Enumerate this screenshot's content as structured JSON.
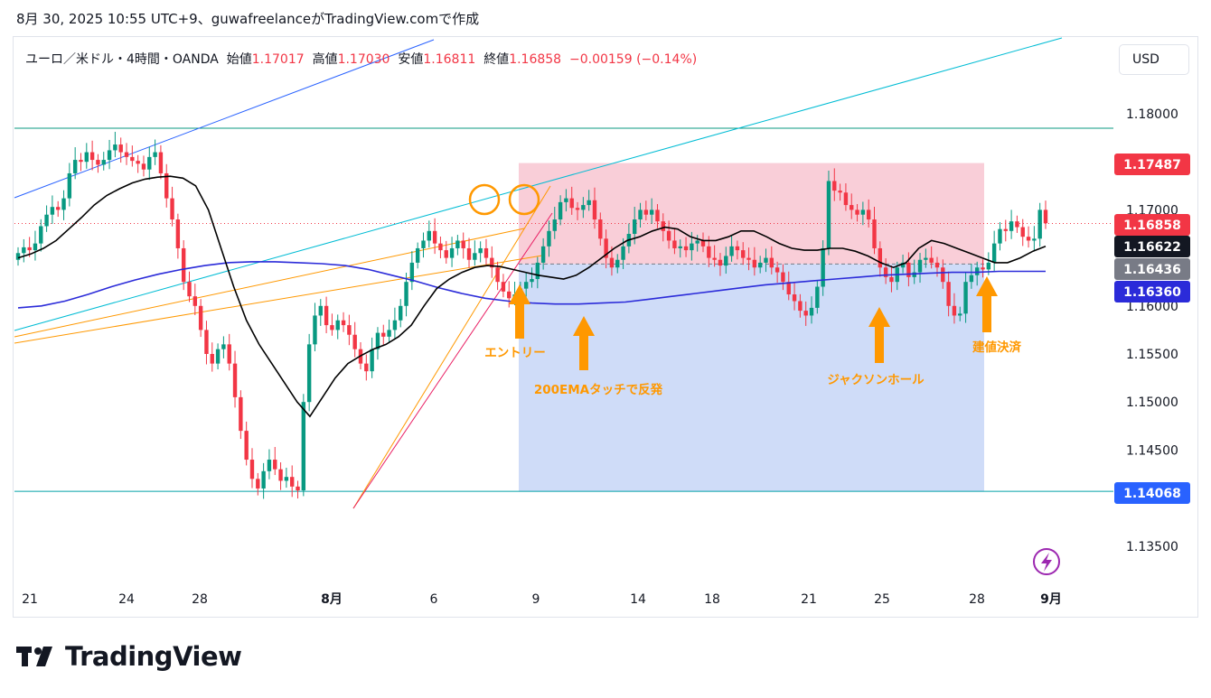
{
  "header": {
    "text": "8月 30, 2025 10:55 UTC+9、guwafreelanceがTradingView.comで作成"
  },
  "ohlc": {
    "symbol": "ユーロ／米ドル・4時間・OANDA",
    "open_label": "始値",
    "open": "1.17017",
    "high_label": "高値",
    "high": "1.17030",
    "low_label": "安値",
    "low": "1.16811",
    "close_label": "終値",
    "close": "1.16858",
    "change": "−0.00159 (−0.14%)"
  },
  "currency_button": "USD",
  "logo_text": "TradingView",
  "colors": {
    "up": "#089981",
    "down": "#f23645",
    "ema_short": "#000000",
    "ema_200": "#2b2bd9",
    "annotation": "#ff9800",
    "sl_zone": "#f8c6d1",
    "tp_zone": "#c7d6f7"
  },
  "chart_data": {
    "type": "candlestick",
    "y_ticks": [
      "1.18000",
      "1.17000",
      "1.16000",
      "1.15500",
      "1.15000",
      "1.14500",
      "1.13500"
    ],
    "ylim": [
      1.131,
      1.1895
    ],
    "x_ticks": [
      "21",
      "24",
      "28",
      "8月",
      "6",
      "9",
      "14",
      "18",
      "21",
      "25",
      "28",
      "9月"
    ],
    "price_labels": [
      {
        "value": "1.17487",
        "color": "#f23645"
      },
      {
        "value": "1.16858",
        "color": "#f23645"
      },
      {
        "value": "1.16622",
        "color": "#131722"
      },
      {
        "value": "1.16436",
        "color": "#787b86"
      },
      {
        "value": "1.16360",
        "color": "#2b2bd9"
      },
      {
        "value": "1.14068",
        "color": "#2962ff"
      }
    ],
    "horizontal_lines": [
      {
        "value": 1.1785,
        "color": "#089981"
      },
      {
        "value": 1.1407,
        "color": "#00a0a8"
      }
    ],
    "position_box": {
      "entry": 1.16436,
      "stop": 1.17487,
      "target": 1.14068
    },
    "annotations": [
      {
        "text": "エントリー"
      },
      {
        "text": "200EMAタッチで反発"
      },
      {
        "text": "ジャクソンホール"
      },
      {
        "text": "建値決済"
      }
    ],
    "close_path": [
      1.1655,
      1.1661,
      1.1658,
      1.1665,
      1.1683,
      1.1695,
      1.1703,
      1.17,
      1.1712,
      1.1738,
      1.1752,
      1.175,
      1.176,
      1.1752,
      1.1747,
      1.1752,
      1.1762,
      1.1768,
      1.176,
      1.1755,
      1.1751,
      1.1748,
      1.1742,
      1.1755,
      1.176,
      1.1738,
      1.1712,
      1.169,
      1.166,
      1.1625,
      1.161,
      1.16,
      1.1575,
      1.155,
      1.154,
      1.1555,
      1.156,
      1.154,
      1.1505,
      1.147,
      1.144,
      1.142,
      1.141,
      1.1428,
      1.144,
      1.143,
      1.1418,
      1.1422,
      1.1412,
      1.1408,
      1.15,
      1.156,
      1.159,
      1.16,
      1.158,
      1.1575,
      1.1585,
      1.158,
      1.157,
      1.1555,
      1.154,
      1.1532,
      1.1555,
      1.1572,
      1.1568,
      1.1575,
      1.1585,
      1.16,
      1.1625,
      1.1645,
      1.166,
      1.1668,
      1.1678,
      1.1665,
      1.1658,
      1.165,
      1.166,
      1.1668,
      1.166,
      1.1648,
      1.1655,
      1.166,
      1.165,
      1.164,
      1.1625,
      1.1615,
      1.1608,
      1.1612,
      1.1618,
      1.1625,
      1.1628,
      1.1645,
      1.1662,
      1.1678,
      1.169,
      1.1708,
      1.1712,
      1.1702,
      1.17,
      1.1705,
      1.171,
      1.169,
      1.167,
      1.165,
      1.164,
      1.1648,
      1.1662,
      1.1675,
      1.169,
      1.17,
      1.1695,
      1.17,
      1.1688,
      1.1678,
      1.1668,
      1.166,
      1.1662,
      1.1658,
      1.1665,
      1.1668,
      1.1662,
      1.165,
      1.1648,
      1.1642,
      1.1652,
      1.1662,
      1.1658,
      1.165,
      1.1648,
      1.164,
      1.1645,
      1.165,
      1.164,
      1.1635,
      1.1625,
      1.1612,
      1.1605,
      1.1595,
      1.159,
      1.1598,
      1.162,
      1.166,
      1.173,
      1.172,
      1.1718,
      1.1705,
      1.17,
      1.1695,
      1.17,
      1.169,
      1.166,
      1.164,
      1.163,
      1.1625,
      1.164,
      1.1645,
      1.163,
      1.1635,
      1.1648,
      1.165,
      1.1645,
      1.164,
      1.1625,
      1.16,
      1.159,
      1.1592,
      1.1625,
      1.1632,
      1.164,
      1.1638,
      1.1645,
      1.1665,
      1.168,
      1.1678,
      1.1688,
      1.1682,
      1.1672,
      1.1668,
      1.167,
      1.17,
      1.1686
    ],
    "ema_short": [
      1.165,
      1.1654,
      1.166,
      1.1668,
      1.168,
      1.1692,
      1.1705,
      1.1715,
      1.1722,
      1.1728,
      1.1732,
      1.1734,
      1.1735,
      1.1733,
      1.1725,
      1.17,
      1.166,
      1.162,
      1.1585,
      1.156,
      1.154,
      1.152,
      1.15,
      1.1485,
      1.1505,
      1.1525,
      1.154,
      1.1548,
      1.1555,
      1.156,
      1.1568,
      1.158,
      1.16,
      1.1618,
      1.1628,
      1.1635,
      1.164,
      1.1642,
      1.1641,
      1.1638,
      1.1635,
      1.1632,
      1.163,
      1.1628,
      1.1632,
      1.164,
      1.165,
      1.166,
      1.1668,
      1.1672,
      1.1678,
      1.1682,
      1.168,
      1.1672,
      1.1668,
      1.1668,
      1.1672,
      1.1678,
      1.1678,
      1.1672,
      1.1665,
      1.166,
      1.1658,
      1.1658,
      1.166,
      1.166,
      1.1657,
      1.1652,
      1.1645,
      1.164,
      1.1645,
      1.166,
      1.1668,
      1.1665,
      1.166,
      1.1655,
      1.165,
      1.1645,
      1.1645,
      1.165,
      1.1657,
      1.1662
    ],
    "ema_200": [
      1.1598,
      1.16,
      1.1605,
      1.1612,
      1.162,
      1.1627,
      1.1633,
      1.1638,
      1.1642,
      1.1645,
      1.1646,
      1.1646,
      1.1645,
      1.1644,
      1.1642,
      1.1638,
      1.1632,
      1.1626,
      1.1619,
      1.1613,
      1.1608,
      1.1605,
      1.1603,
      1.1602,
      1.1602,
      1.1603,
      1.1604,
      1.1607,
      1.161,
      1.1613,
      1.1616,
      1.1619,
      1.1622,
      1.1624,
      1.1626,
      1.1628,
      1.163,
      1.1632,
      1.1633,
      1.1634,
      1.1635,
      1.1635,
      1.1636,
      1.1636,
      1.1636
    ]
  }
}
